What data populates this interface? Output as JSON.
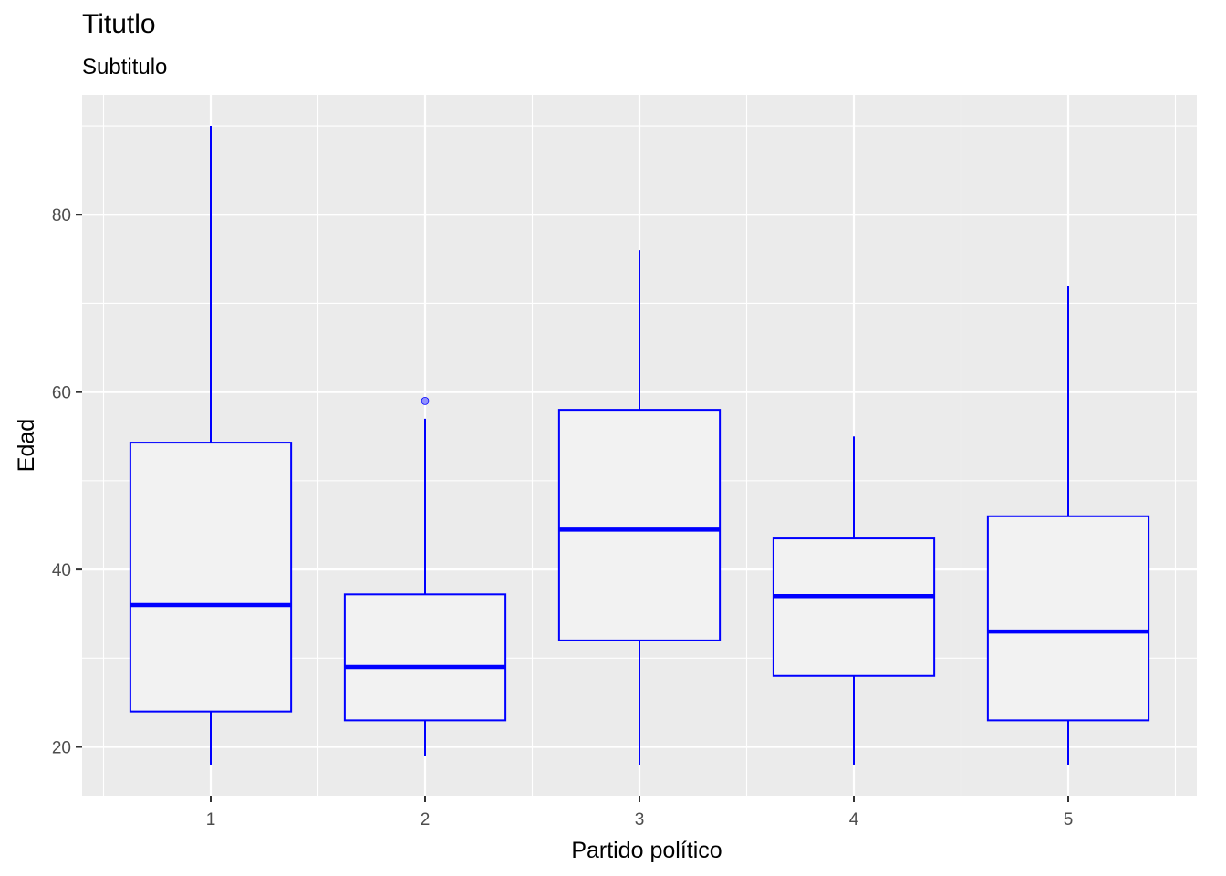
{
  "chart_data": {
    "type": "boxplot",
    "title": "Titutlo",
    "subtitle": "Subtitulo",
    "xlabel": "Partido político",
    "ylabel": "Edad",
    "categories": [
      "1",
      "2",
      "3",
      "4",
      "5"
    ],
    "ylim": [
      14.5,
      93.5
    ],
    "yticks": [
      20,
      40,
      60,
      80
    ],
    "grid": true,
    "legend": "none",
    "colors": {
      "box_stroke": "#0000ff",
      "box_fill": "#f2f2f2",
      "panel": "#ebebeb",
      "grid": "#ffffff",
      "outlier": "#8080ff"
    },
    "boxes": [
      {
        "category": "1",
        "whisker_low": 18,
        "q1": 24,
        "median": 36,
        "q3": 54.3,
        "whisker_high": 90,
        "outliers": []
      },
      {
        "category": "2",
        "whisker_low": 19,
        "q1": 23,
        "median": 29,
        "q3": 37.2,
        "whisker_high": 57,
        "outliers": [
          59
        ]
      },
      {
        "category": "3",
        "whisker_low": 18,
        "q1": 32,
        "median": 44.5,
        "q3": 58,
        "whisker_high": 76,
        "outliers": []
      },
      {
        "category": "4",
        "whisker_low": 18,
        "q1": 28,
        "median": 37,
        "q3": 43.5,
        "whisker_high": 55,
        "outliers": []
      },
      {
        "category": "5",
        "whisker_low": 18,
        "q1": 23,
        "median": 33,
        "q3": 46,
        "whisker_high": 72,
        "outliers": []
      }
    ]
  }
}
